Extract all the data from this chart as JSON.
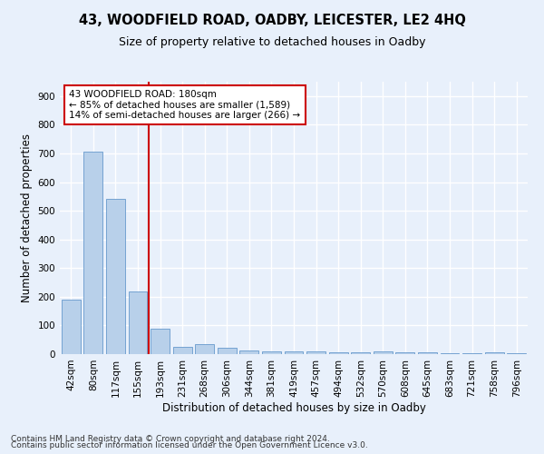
{
  "title1": "43, WOODFIELD ROAD, OADBY, LEICESTER, LE2 4HQ",
  "title2": "Size of property relative to detached houses in Oadby",
  "xlabel": "Distribution of detached houses by size in Oadby",
  "ylabel": "Number of detached properties",
  "categories": [
    "42sqm",
    "80sqm",
    "117sqm",
    "155sqm",
    "193sqm",
    "231sqm",
    "268sqm",
    "306sqm",
    "344sqm",
    "381sqm",
    "419sqm",
    "457sqm",
    "494sqm",
    "532sqm",
    "570sqm",
    "608sqm",
    "645sqm",
    "683sqm",
    "721sqm",
    "758sqm",
    "796sqm"
  ],
  "values": [
    190,
    707,
    540,
    220,
    90,
    25,
    35,
    22,
    12,
    10,
    10,
    10,
    7,
    5,
    8,
    5,
    5,
    3,
    2,
    5,
    2
  ],
  "bar_color": "#b8d0ea",
  "bar_edge_color": "#6699cc",
  "annotation_text": "43 WOODFIELD ROAD: 180sqm\n← 85% of detached houses are smaller (1,589)\n14% of semi-detached houses are larger (266) →",
  "annotation_box_facecolor": "#ffffff",
  "annotation_box_edgecolor": "#cc0000",
  "vline_color": "#cc0000",
  "ylim": [
    0,
    950
  ],
  "yticks": [
    0,
    100,
    200,
    300,
    400,
    500,
    600,
    700,
    800,
    900
  ],
  "footer1": "Contains HM Land Registry data © Crown copyright and database right 2024.",
  "footer2": "Contains public sector information licensed under the Open Government Licence v3.0.",
  "bg_color": "#e8f0fb",
  "plot_bg_color": "#e8f0fb",
  "grid_color": "#ffffff",
  "title1_fontsize": 10.5,
  "title2_fontsize": 9,
  "xlabel_fontsize": 8.5,
  "ylabel_fontsize": 8.5,
  "tick_fontsize": 7.5,
  "annotation_fontsize": 7.5,
  "footer_fontsize": 6.5,
  "vline_x_index": 3.5
}
